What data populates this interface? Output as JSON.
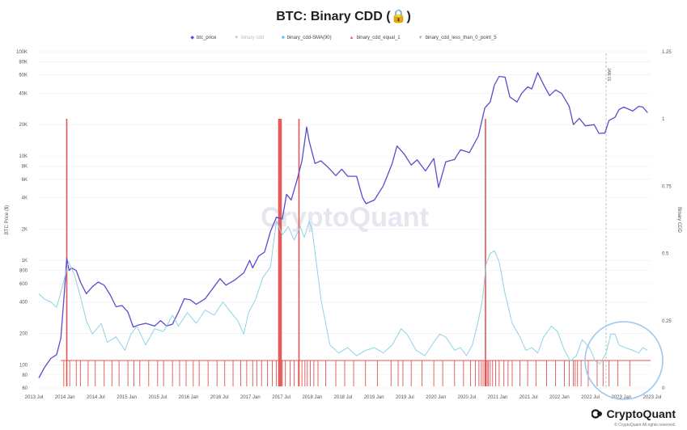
{
  "title": "BTC: Binary CDD (🔒)",
  "legend": [
    {
      "label": "btc_price",
      "color": "#5b4bd1",
      "marker": "◆"
    },
    {
      "label": "binary cdd",
      "color": "#c4c4c4",
      "marker": "▼"
    },
    {
      "label": "binary_cdd-SMA(90)",
      "color": "#5fb4e8",
      "marker": "■"
    },
    {
      "label": "binary_cdd_equal_1",
      "color": "#e06a6a",
      "marker": "▲"
    },
    {
      "label": "binary_cdd_less_than_0_point_5",
      "color": "#aaaaaa",
      "marker": "▼"
    }
  ],
  "watermark": "CryptoQuant",
  "brand": "CryptoQuant",
  "copyright": "© CryptoQuant All rights reserved.",
  "event_label": "JAN 01",
  "colors": {
    "price": "#5b4bd1",
    "sma": "#8fd3e6",
    "bars": "#e05555",
    "grid": "#eeeeee",
    "highlight": "#9cc8ee"
  },
  "chart_data": {
    "type": "line",
    "title": "BTC: Binary CDD (🔒)",
    "ylabel_left": "BTC Price ($)",
    "ylabel_right": "Binary CDD",
    "y_left_scale": "log",
    "ylim_left": [
      60,
      100000
    ],
    "ylim_right": [
      0,
      1.25
    ],
    "y_left_ticks": [
      {
        "v": 60,
        "label": "60"
      },
      {
        "v": 80,
        "label": "80"
      },
      {
        "v": 100,
        "label": "100"
      },
      {
        "v": 200,
        "label": "200"
      },
      {
        "v": 400,
        "label": "400"
      },
      {
        "v": 600,
        "label": "600"
      },
      {
        "v": 800,
        "label": "800"
      },
      {
        "v": 1000,
        "label": "1K"
      },
      {
        "v": 2000,
        "label": "2K"
      },
      {
        "v": 4000,
        "label": "4K"
      },
      {
        "v": 6000,
        "label": "6K"
      },
      {
        "v": 8000,
        "label": "8K"
      },
      {
        "v": 10000,
        "label": "10K"
      },
      {
        "v": 20000,
        "label": "20K"
      },
      {
        "v": 40000,
        "label": "40K"
      },
      {
        "v": 60000,
        "label": "60K"
      },
      {
        "v": 80000,
        "label": "80K"
      },
      {
        "v": 100000,
        "label": "100K"
      }
    ],
    "y_right_ticks": [
      {
        "v": 0,
        "label": "0"
      },
      {
        "v": 0.25,
        "label": "0.25"
      },
      {
        "v": 0.5,
        "label": "0.5"
      },
      {
        "v": 0.75,
        "label": "0.75"
      },
      {
        "v": 1,
        "label": "1"
      },
      {
        "v": 1.25,
        "label": "1.25"
      }
    ],
    "x_ticks": [
      "2013 Jul",
      "2014 Jan",
      "2014 Jul",
      "2015 Jan",
      "2015 Jul",
      "2016 Jan",
      "2016 Jul",
      "2017 Jan",
      "2017 Jul",
      "2018 Jan",
      "2018 Jul",
      "2019 Jan",
      "2019 Jul",
      "2020 Jan",
      "2020 Jul",
      "2021 Jan",
      "2021 Jul",
      "2022 Jan",
      "2022 Jul",
      "2023 Jan",
      "2023 Jul"
    ],
    "x_range": [
      2013.45,
      2023.75
    ],
    "series": [
      {
        "name": "btc_price",
        "axis": "left",
        "points": [
          [
            2013.45,
            75
          ],
          [
            2013.55,
            95
          ],
          [
            2013.65,
            115
          ],
          [
            2013.75,
            125
          ],
          [
            2013.82,
            180
          ],
          [
            2013.88,
            500
          ],
          [
            2013.92,
            1050
          ],
          [
            2013.96,
            800
          ],
          [
            2014.0,
            850
          ],
          [
            2014.08,
            800
          ],
          [
            2014.15,
            620
          ],
          [
            2014.25,
            480
          ],
          [
            2014.35,
            560
          ],
          [
            2014.45,
            620
          ],
          [
            2014.55,
            580
          ],
          [
            2014.65,
            470
          ],
          [
            2014.75,
            360
          ],
          [
            2014.85,
            370
          ],
          [
            2014.95,
            320
          ],
          [
            2015.04,
            230
          ],
          [
            2015.12,
            240
          ],
          [
            2015.25,
            250
          ],
          [
            2015.4,
            235
          ],
          [
            2015.5,
            265
          ],
          [
            2015.6,
            235
          ],
          [
            2015.7,
            245
          ],
          [
            2015.8,
            320
          ],
          [
            2015.9,
            430
          ],
          [
            2016.0,
            420
          ],
          [
            2016.1,
            380
          ],
          [
            2016.25,
            430
          ],
          [
            2016.4,
            560
          ],
          [
            2016.5,
            670
          ],
          [
            2016.6,
            580
          ],
          [
            2016.75,
            650
          ],
          [
            2016.9,
            760
          ],
          [
            2017.0,
            1000
          ],
          [
            2017.05,
            850
          ],
          [
            2017.15,
            1100
          ],
          [
            2017.25,
            1200
          ],
          [
            2017.35,
            1900
          ],
          [
            2017.45,
            2600
          ],
          [
            2017.55,
            2500
          ],
          [
            2017.62,
            4300
          ],
          [
            2017.7,
            3800
          ],
          [
            2017.8,
            6000
          ],
          [
            2017.88,
            9000
          ],
          [
            2017.96,
            19000
          ],
          [
            2018.0,
            14000
          ],
          [
            2018.1,
            8500
          ],
          [
            2018.2,
            9000
          ],
          [
            2018.3,
            8000
          ],
          [
            2018.45,
            6500
          ],
          [
            2018.55,
            7500
          ],
          [
            2018.65,
            6400
          ],
          [
            2018.8,
            6400
          ],
          [
            2018.9,
            4000
          ],
          [
            2018.96,
            3500
          ],
          [
            2019.1,
            3800
          ],
          [
            2019.25,
            5200
          ],
          [
            2019.4,
            8500
          ],
          [
            2019.48,
            12500
          ],
          [
            2019.6,
            10500
          ],
          [
            2019.72,
            8200
          ],
          [
            2019.82,
            9200
          ],
          [
            2019.96,
            7200
          ],
          [
            2020.1,
            9500
          ],
          [
            2020.18,
            5000
          ],
          [
            2020.3,
            8800
          ],
          [
            2020.45,
            9300
          ],
          [
            2020.55,
            11500
          ],
          [
            2020.7,
            10800
          ],
          [
            2020.85,
            15500
          ],
          [
            2020.96,
            29000
          ],
          [
            2021.05,
            33000
          ],
          [
            2021.12,
            48000
          ],
          [
            2021.2,
            58000
          ],
          [
            2021.3,
            57000
          ],
          [
            2021.38,
            37000
          ],
          [
            2021.5,
            33000
          ],
          [
            2021.58,
            40000
          ],
          [
            2021.68,
            46000
          ],
          [
            2021.75,
            44000
          ],
          [
            2021.85,
            63000
          ],
          [
            2021.96,
            47000
          ],
          [
            2022.05,
            38000
          ],
          [
            2022.15,
            43000
          ],
          [
            2022.25,
            40000
          ],
          [
            2022.38,
            30000
          ],
          [
            2022.45,
            20000
          ],
          [
            2022.55,
            23000
          ],
          [
            2022.65,
            19500
          ],
          [
            2022.8,
            20000
          ],
          [
            2022.88,
            16500
          ],
          [
            2022.98,
            16600
          ],
          [
            2023.05,
            22000
          ],
          [
            2023.15,
            23500
          ],
          [
            2023.22,
            28000
          ],
          [
            2023.3,
            29500
          ],
          [
            2023.45,
            27000
          ],
          [
            2023.55,
            30000
          ],
          [
            2023.62,
            29500
          ],
          [
            2023.7,
            26000
          ]
        ]
      },
      {
        "name": "binary_cdd-SMA(90)",
        "axis": "right",
        "points": [
          [
            2013.45,
            0.35
          ],
          [
            2013.55,
            0.33
          ],
          [
            2013.65,
            0.32
          ],
          [
            2013.75,
            0.3
          ],
          [
            2013.85,
            0.38
          ],
          [
            2013.95,
            0.47
          ],
          [
            2014.05,
            0.42
          ],
          [
            2014.15,
            0.34
          ],
          [
            2014.25,
            0.25
          ],
          [
            2014.35,
            0.2
          ],
          [
            2014.5,
            0.24
          ],
          [
            2014.6,
            0.17
          ],
          [
            2014.75,
            0.19
          ],
          [
            2014.9,
            0.14
          ],
          [
            2015.0,
            0.2
          ],
          [
            2015.1,
            0.23
          ],
          [
            2015.25,
            0.16
          ],
          [
            2015.4,
            0.22
          ],
          [
            2015.55,
            0.21
          ],
          [
            2015.7,
            0.27
          ],
          [
            2015.8,
            0.23
          ],
          [
            2015.95,
            0.28
          ],
          [
            2016.1,
            0.24
          ],
          [
            2016.25,
            0.29
          ],
          [
            2016.4,
            0.27
          ],
          [
            2016.55,
            0.32
          ],
          [
            2016.65,
            0.29
          ],
          [
            2016.8,
            0.25
          ],
          [
            2016.9,
            0.2
          ],
          [
            2016.98,
            0.28
          ],
          [
            2017.1,
            0.33
          ],
          [
            2017.22,
            0.41
          ],
          [
            2017.35,
            0.45
          ],
          [
            2017.45,
            0.62
          ],
          [
            2017.55,
            0.57
          ],
          [
            2017.65,
            0.6
          ],
          [
            2017.75,
            0.55
          ],
          [
            2017.85,
            0.6
          ],
          [
            2017.92,
            0.56
          ],
          [
            2018.0,
            0.62
          ],
          [
            2018.05,
            0.59
          ],
          [
            2018.12,
            0.47
          ],
          [
            2018.2,
            0.33
          ],
          [
            2018.35,
            0.16
          ],
          [
            2018.5,
            0.13
          ],
          [
            2018.65,
            0.15
          ],
          [
            2018.8,
            0.12
          ],
          [
            2018.95,
            0.14
          ],
          [
            2019.1,
            0.15
          ],
          [
            2019.25,
            0.13
          ],
          [
            2019.4,
            0.16
          ],
          [
            2019.55,
            0.22
          ],
          [
            2019.65,
            0.2
          ],
          [
            2019.8,
            0.14
          ],
          [
            2019.95,
            0.12
          ],
          [
            2020.1,
            0.17
          ],
          [
            2020.2,
            0.2
          ],
          [
            2020.3,
            0.19
          ],
          [
            2020.45,
            0.14
          ],
          [
            2020.55,
            0.15
          ],
          [
            2020.65,
            0.12
          ],
          [
            2020.75,
            0.16
          ],
          [
            2020.85,
            0.25
          ],
          [
            2020.92,
            0.33
          ],
          [
            2020.98,
            0.46
          ],
          [
            2021.05,
            0.5
          ],
          [
            2021.12,
            0.51
          ],
          [
            2021.2,
            0.47
          ],
          [
            2021.3,
            0.35
          ],
          [
            2021.42,
            0.24
          ],
          [
            2021.55,
            0.19
          ],
          [
            2021.65,
            0.14
          ],
          [
            2021.75,
            0.15
          ],
          [
            2021.85,
            0.13
          ],
          [
            2021.95,
            0.19
          ],
          [
            2022.08,
            0.23
          ],
          [
            2022.18,
            0.21
          ],
          [
            2022.3,
            0.14
          ],
          [
            2022.4,
            0.1
          ],
          [
            2022.5,
            0.12
          ],
          [
            2022.6,
            0.18
          ],
          [
            2022.72,
            0.15
          ],
          [
            2022.82,
            0.1
          ],
          [
            2022.9,
            0.09
          ],
          [
            2023.0,
            0.13
          ],
          [
            2023.08,
            0.2
          ],
          [
            2023.15,
            0.2
          ],
          [
            2023.22,
            0.16
          ],
          [
            2023.32,
            0.15
          ],
          [
            2023.45,
            0.14
          ],
          [
            2023.55,
            0.13
          ],
          [
            2023.62,
            0.15
          ],
          [
            2023.7,
            0.14
          ]
        ]
      }
    ],
    "binary_cdd_equal_1": [
      2013.87,
      2013.92,
      2013.97,
      2014.08,
      2014.15,
      2014.28,
      2014.4,
      2014.55,
      2014.68,
      2014.8,
      2014.95,
      2015.05,
      2015.15,
      2015.3,
      2015.45,
      2015.55,
      2015.7,
      2015.82,
      2015.93,
      2016.05,
      2016.15,
      2016.3,
      2016.45,
      2016.58,
      2016.72,
      2016.85,
      2016.95,
      2017.05,
      2017.12,
      2017.2,
      2017.3,
      2017.38,
      2017.45,
      2017.49,
      2017.51,
      2017.53,
      2017.55,
      2017.6,
      2017.68,
      2017.75,
      2017.82,
      2017.88,
      2017.93,
      2017.97,
      2018.02,
      2018.08,
      2018.15,
      2018.28,
      2018.45,
      2018.6,
      2018.75,
      2018.95,
      2019.15,
      2019.38,
      2019.5,
      2019.58,
      2019.72,
      2019.9,
      2020.1,
      2020.25,
      2020.45,
      2020.6,
      2020.72,
      2020.8,
      2020.86,
      2020.9,
      2020.93,
      2020.96,
      2020.98,
      2021.0,
      2021.02,
      2021.05,
      2021.09,
      2021.14,
      2021.2,
      2021.28,
      2021.35,
      2021.42,
      2021.55,
      2021.68,
      2021.82,
      2022.0,
      2022.15,
      2022.3,
      2022.38,
      2022.45,
      2022.48,
      2022.52,
      2022.58,
      2022.7,
      2022.85,
      2022.95,
      2023.05,
      2023.2,
      2023.4
    ],
    "tall_spikes": [
      2013.92,
      2017.49,
      2017.51,
      2017.53,
      2017.83,
      2020.97
    ],
    "event_marker": {
      "x": 2023.0
    }
  }
}
